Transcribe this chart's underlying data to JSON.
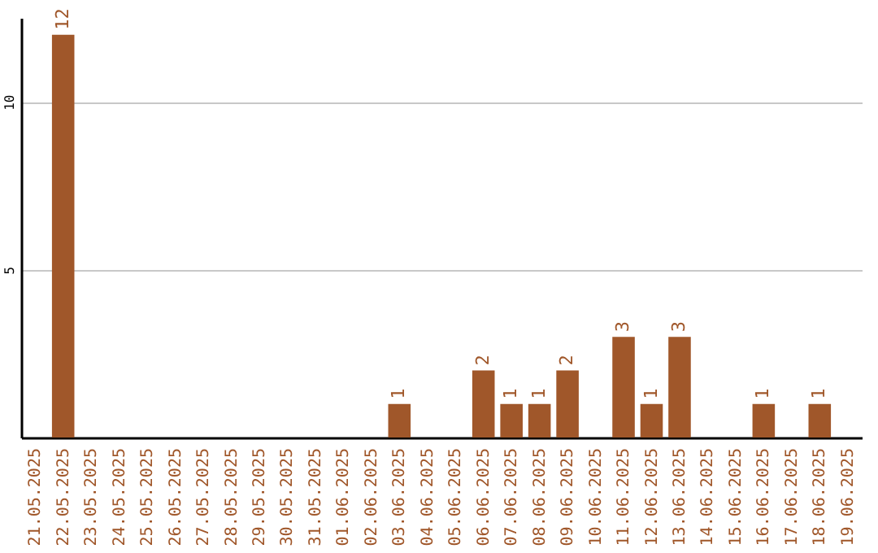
{
  "chart_data": {
    "type": "bar",
    "categories": [
      "21.05.2025",
      "22.05.2025",
      "23.05.2025",
      "24.05.2025",
      "25.05.2025",
      "26.05.2025",
      "27.05.2025",
      "28.05.2025",
      "29.05.2025",
      "30.05.2025",
      "31.05.2025",
      "01.06.2025",
      "02.06.2025",
      "03.06.2025",
      "04.06.2025",
      "05.06.2025",
      "06.06.2025",
      "07.06.2025",
      "08.06.2025",
      "09.06.2025",
      "10.06.2025",
      "11.06.2025",
      "12.06.2025",
      "13.06.2025",
      "14.06.2025",
      "15.06.2025",
      "16.06.2025",
      "17.06.2025",
      "18.06.2025",
      "19.06.2025"
    ],
    "values": [
      0,
      12,
      0,
      0,
      0,
      0,
      0,
      0,
      0,
      0,
      0,
      0,
      0,
      1,
      0,
      0,
      2,
      1,
      1,
      2,
      0,
      3,
      1,
      3,
      0,
      0,
      1,
      0,
      1,
      0
    ],
    "value_labels": [
      null,
      "12",
      null,
      null,
      null,
      null,
      null,
      null,
      null,
      null,
      null,
      null,
      null,
      "1",
      null,
      null,
      "2",
      "1",
      "1",
      "2",
      null,
      "3",
      "1",
      "3",
      null,
      null,
      "1",
      null,
      "1",
      null
    ],
    "color": "#a0572a",
    "ylim": [
      0,
      12.5
    ],
    "yticks": [
      5,
      10
    ],
    "grid": "y"
  }
}
